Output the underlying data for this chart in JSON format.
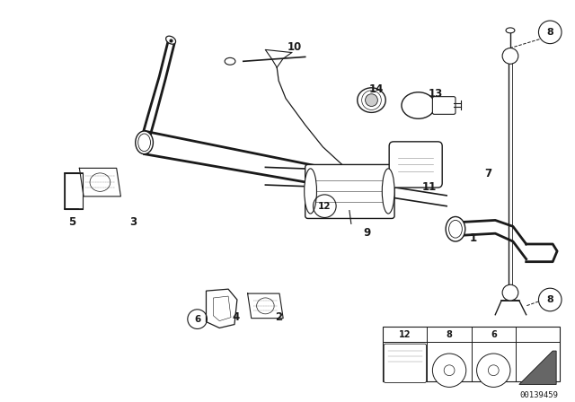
{
  "bg_color": "#ffffff",
  "line_color": "#1a1a1a",
  "fig_width": 6.4,
  "fig_height": 4.48,
  "dpi": 100,
  "diagram_id": "00139459"
}
